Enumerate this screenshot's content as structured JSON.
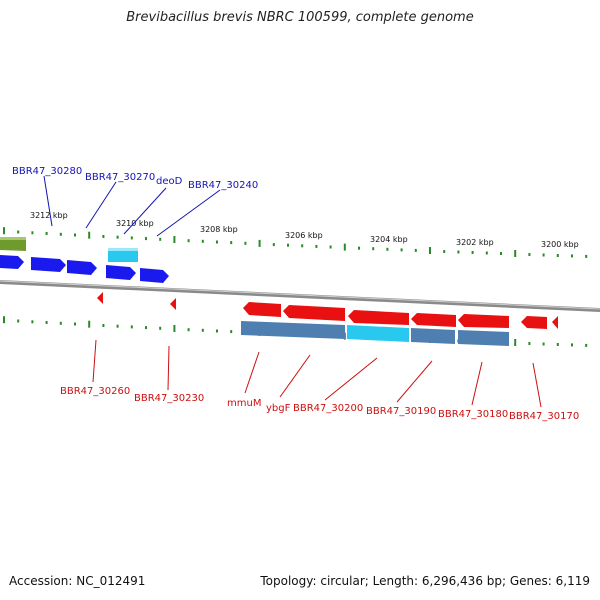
{
  "title": "Brevibacillus brevis NBRC 100599, complete genome",
  "footer": {
    "accession": "Accession: NC_012491",
    "summary": "Topology: circular; Length: 6,296,436 bp; Genes: 6,119"
  },
  "colors": {
    "forward_gene": "#1a1aee",
    "reverse_gene": "#e81010",
    "cds_steel": "#4f7fb0",
    "highlight": "#29c8ee",
    "olive": "#6f9a2c",
    "tick": "#2a8a2a",
    "backbone": "#888888",
    "label_blue": "#1414b4",
    "label_red": "#cc1010"
  },
  "scale_ticks": [
    {
      "kbp": 3212,
      "label": "3212 kbp"
    },
    {
      "kbp": 3210,
      "label": "3210 kbp"
    },
    {
      "kbp": 3208,
      "label": "3208 kbp"
    },
    {
      "kbp": 3206,
      "label": "3206 kbp"
    },
    {
      "kbp": 3204,
      "label": "3204 kbp"
    },
    {
      "kbp": 3202,
      "label": "3202 kbp"
    },
    {
      "kbp": 3200,
      "label": "3200 kbp"
    }
  ],
  "top_labels": [
    "BBR47_30280",
    "BBR47_30270",
    "deoD",
    "BBR47_30240"
  ],
  "bottom_labels": [
    "BBR47_30260",
    "BBR47_30230",
    "mmuM",
    "ybgF",
    "BBR47_30200",
    "BBR47_30190",
    "BBR47_30180",
    "BBR47_30170"
  ]
}
